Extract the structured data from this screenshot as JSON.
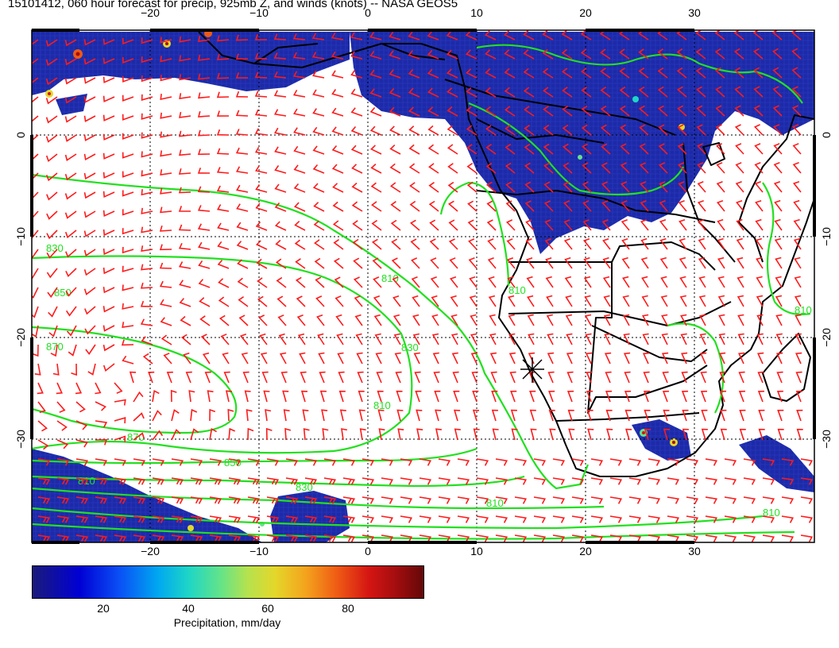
{
  "title": "15101412, 060 hour forecast for precip, 925mb Z, and winds (knots) -- NASA GEOS5",
  "map": {
    "projection": "lat-lon",
    "lon_range": [
      -31,
      41
    ],
    "lat_range": [
      -39,
      10
    ],
    "lon_ticks": [
      {
        "value": -20,
        "label": "−20"
      },
      {
        "value": -10,
        "label": "−10"
      },
      {
        "value": 0,
        "label": "0"
      },
      {
        "value": 10,
        "label": "10"
      },
      {
        "value": 20,
        "label": "20"
      },
      {
        "value": 30,
        "label": "30"
      }
    ],
    "lat_ticks": [
      {
        "value": 0,
        "label": "0"
      },
      {
        "value": -10,
        "label": "−10"
      },
      {
        "value": -20,
        "label": "−20"
      },
      {
        "value": -30,
        "label": "−30"
      }
    ],
    "gridlines": "dotted",
    "colors": {
      "contours": "#22e01f",
      "wind_barbs": "#ff0000",
      "coastlines": "#000000",
      "precip_low": "#1a1a8f"
    },
    "contour_labels": [
      "830",
      "850",
      "870",
      "870",
      "850",
      "810",
      "830",
      "810",
      "810",
      "830",
      "810",
      "810",
      "810",
      "810"
    ],
    "marker": {
      "symbol": "asterisk",
      "lon": 14.5,
      "lat": -23
    }
  },
  "colorbar": {
    "label": "Precipitation, mm/day",
    "range": [
      0,
      100
    ],
    "ticks": [
      {
        "value": 20,
        "label": "20"
      },
      {
        "value": 40,
        "label": "40"
      },
      {
        "value": 60,
        "label": "60"
      },
      {
        "value": 80,
        "label": "80"
      }
    ]
  }
}
